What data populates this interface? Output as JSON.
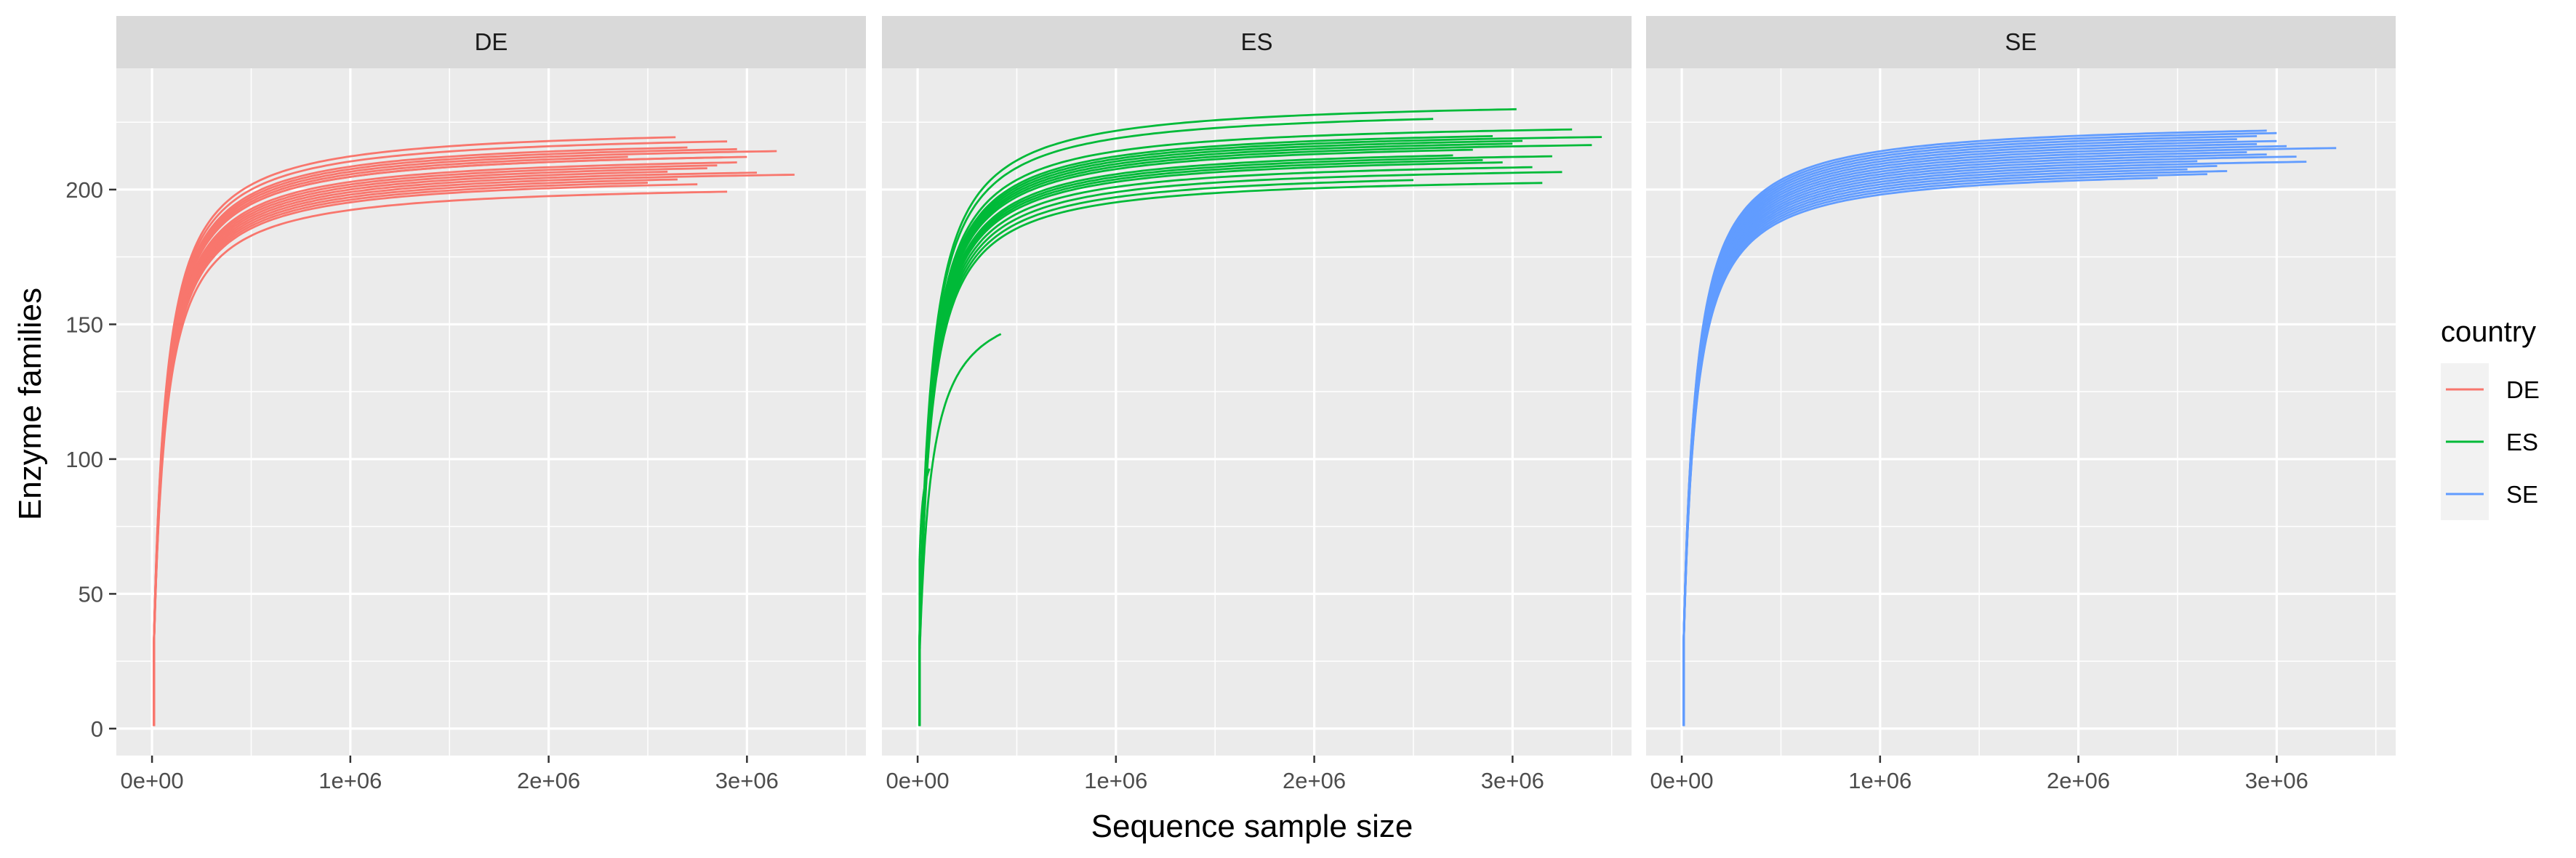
{
  "chart_data": {
    "type": "line",
    "xlabel": "Sequence sample size",
    "ylabel": "Enzyme families",
    "xlim": [
      -180000,
      3600000
    ],
    "ylim": [
      -10,
      245
    ],
    "x_ticks": [
      0,
      1000000,
      2000000,
      3000000
    ],
    "x_tick_labels": [
      "0e+00",
      "1e+06",
      "2e+06",
      "3e+06"
    ],
    "y_ticks": [
      0,
      50,
      100,
      150,
      200
    ],
    "y_tick_labels": [
      "0",
      "50",
      "100",
      "150",
      "200"
    ],
    "grid": true,
    "legend": {
      "title": "country",
      "placement": "right",
      "entries": [
        {
          "label": "DE",
          "color": "#F8766D"
        },
        {
          "label": "ES",
          "color": "#00BA38"
        },
        {
          "label": "SE",
          "color": "#619CFF"
        }
      ]
    },
    "panels": [
      {
        "label": "DE",
        "color": "#F8766D",
        "curves": [
          {
            "max_x": 2640000,
            "plateau": 224
          },
          {
            "max_x": 2900000,
            "plateau": 222
          },
          {
            "max_x": 3150000,
            "plateau": 218
          },
          {
            "max_x": 3240000,
            "plateau": 209
          },
          {
            "max_x": 2880000,
            "plateau": 216
          },
          {
            "max_x": 2950000,
            "plateau": 214
          },
          {
            "max_x": 2800000,
            "plateau": 212
          },
          {
            "max_x": 3050000,
            "plateau": 210
          },
          {
            "max_x": 2700000,
            "plateau": 220
          },
          {
            "max_x": 2500000,
            "plateau": 207
          },
          {
            "max_x": 2900000,
            "plateau": 203
          },
          {
            "max_x": 2600000,
            "plateau": 211
          },
          {
            "max_x": 2850000,
            "plateau": 213
          },
          {
            "max_x": 3000000,
            "plateau": 216
          },
          {
            "max_x": 2400000,
            "plateau": 217
          },
          {
            "max_x": 2750000,
            "plateau": 206
          },
          {
            "max_x": 2950000,
            "plateau": 219
          },
          {
            "max_x": 2650000,
            "plateau": 208
          }
        ]
      },
      {
        "label": "ES",
        "color": "#00BA38",
        "curves": [
          {
            "max_x": 3020000,
            "plateau": 234
          },
          {
            "max_x": 2600000,
            "plateau": 231
          },
          {
            "max_x": 3450000,
            "plateau": 223
          },
          {
            "max_x": 3300000,
            "plateau": 226
          },
          {
            "max_x": 3400000,
            "plateau": 220
          },
          {
            "max_x": 3200000,
            "plateau": 216
          },
          {
            "max_x": 3250000,
            "plateau": 210
          },
          {
            "max_x": 3150000,
            "plateau": 206
          },
          {
            "max_x": 2950000,
            "plateau": 214
          },
          {
            "max_x": 2800000,
            "plateau": 219
          },
          {
            "max_x": 3000000,
            "plateau": 221
          },
          {
            "max_x": 2700000,
            "plateau": 217
          },
          {
            "max_x": 3100000,
            "plateau": 212
          },
          {
            "max_x": 2900000,
            "plateau": 224
          },
          {
            "max_x": 2500000,
            "plateau": 208
          },
          {
            "max_x": 3050000,
            "plateau": 222
          },
          {
            "max_x": 2850000,
            "plateau": 215
          },
          {
            "max_x": 420000,
            "plateau": 164
          },
          {
            "max_x": 60000,
            "plateau": 108
          }
        ]
      },
      {
        "label": "SE",
        "color": "#619CFF",
        "curves": [
          {
            "max_x": 2950000,
            "plateau": 226
          },
          {
            "max_x": 3000000,
            "plateau": 222
          },
          {
            "max_x": 3300000,
            "plateau": 219
          },
          {
            "max_x": 3100000,
            "plateau": 216
          },
          {
            "max_x": 2700000,
            "plateau": 213
          },
          {
            "max_x": 2900000,
            "plateau": 224
          },
          {
            "max_x": 2850000,
            "plateau": 218
          },
          {
            "max_x": 2600000,
            "plateau": 215
          },
          {
            "max_x": 3050000,
            "plateau": 220
          },
          {
            "max_x": 2750000,
            "plateau": 211
          },
          {
            "max_x": 2400000,
            "plateau": 209
          },
          {
            "max_x": 2950000,
            "plateau": 217
          },
          {
            "max_x": 3150000,
            "plateau": 214
          },
          {
            "max_x": 2800000,
            "plateau": 223
          },
          {
            "max_x": 2550000,
            "plateau": 212
          },
          {
            "max_x": 3000000,
            "plateau": 225
          },
          {
            "max_x": 2650000,
            "plateau": 210
          },
          {
            "max_x": 2900000,
            "plateau": 221
          }
        ]
      }
    ]
  }
}
